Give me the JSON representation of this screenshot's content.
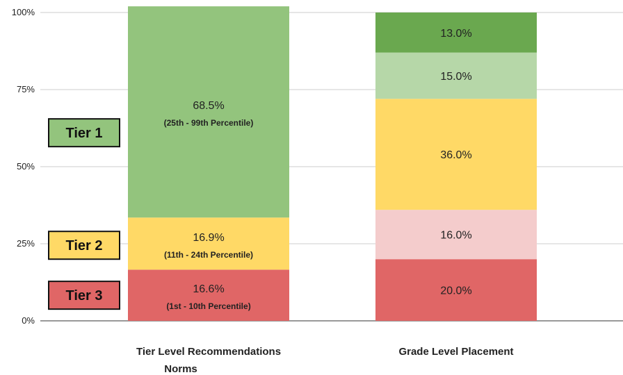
{
  "chart_data": {
    "type": "bar",
    "stacked": true,
    "ylim": [
      0,
      100
    ],
    "yticks": [
      {
        "value": 0,
        "label": "0%"
      },
      {
        "value": 25,
        "label": "25%"
      },
      {
        "value": 50,
        "label": "50%"
      },
      {
        "value": 75,
        "label": "75%"
      },
      {
        "value": 100,
        "label": "100%"
      }
    ],
    "grid": true,
    "bars": [
      {
        "category_lines": [
          "Tier Level Recommendations",
          "Norms"
        ],
        "segments": [
          {
            "value": 16.6,
            "label": "16.6%",
            "sublabel": "(1st - 10th Percentile)",
            "color": "#e06666"
          },
          {
            "value": 16.9,
            "label": "16.9%",
            "sublabel": "(11th - 24th Percentile)",
            "color": "#ffd966"
          },
          {
            "value": 68.5,
            "label": "68.5%",
            "sublabel": "(25th - 99th Percentile)",
            "color": "#93c47d"
          }
        ]
      },
      {
        "category_lines": [
          "Grade Level Placement"
        ],
        "segments": [
          {
            "value": 20.0,
            "label": "20.0%",
            "sublabel": "",
            "color": "#e06666"
          },
          {
            "value": 16.0,
            "label": "16.0%",
            "sublabel": "",
            "color": "#f4cccc"
          },
          {
            "value": 36.0,
            "label": "36.0%",
            "sublabel": "",
            "color": "#ffd966"
          },
          {
            "value": 15.0,
            "label": "15.0%",
            "sublabel": "",
            "color": "#b6d7a8"
          },
          {
            "value": 13.0,
            "label": "13.0%",
            "sublabel": "",
            "color": "#6aa84f"
          }
        ]
      }
    ],
    "annotations": [
      {
        "text": "Tier 1",
        "color": "#93c47d",
        "y_value": 61
      },
      {
        "text": "Tier 2",
        "color": "#ffd966",
        "y_value": 24.5
      },
      {
        "text": "Tier 3",
        "color": "#e06666",
        "y_value": 8.3
      }
    ]
  }
}
